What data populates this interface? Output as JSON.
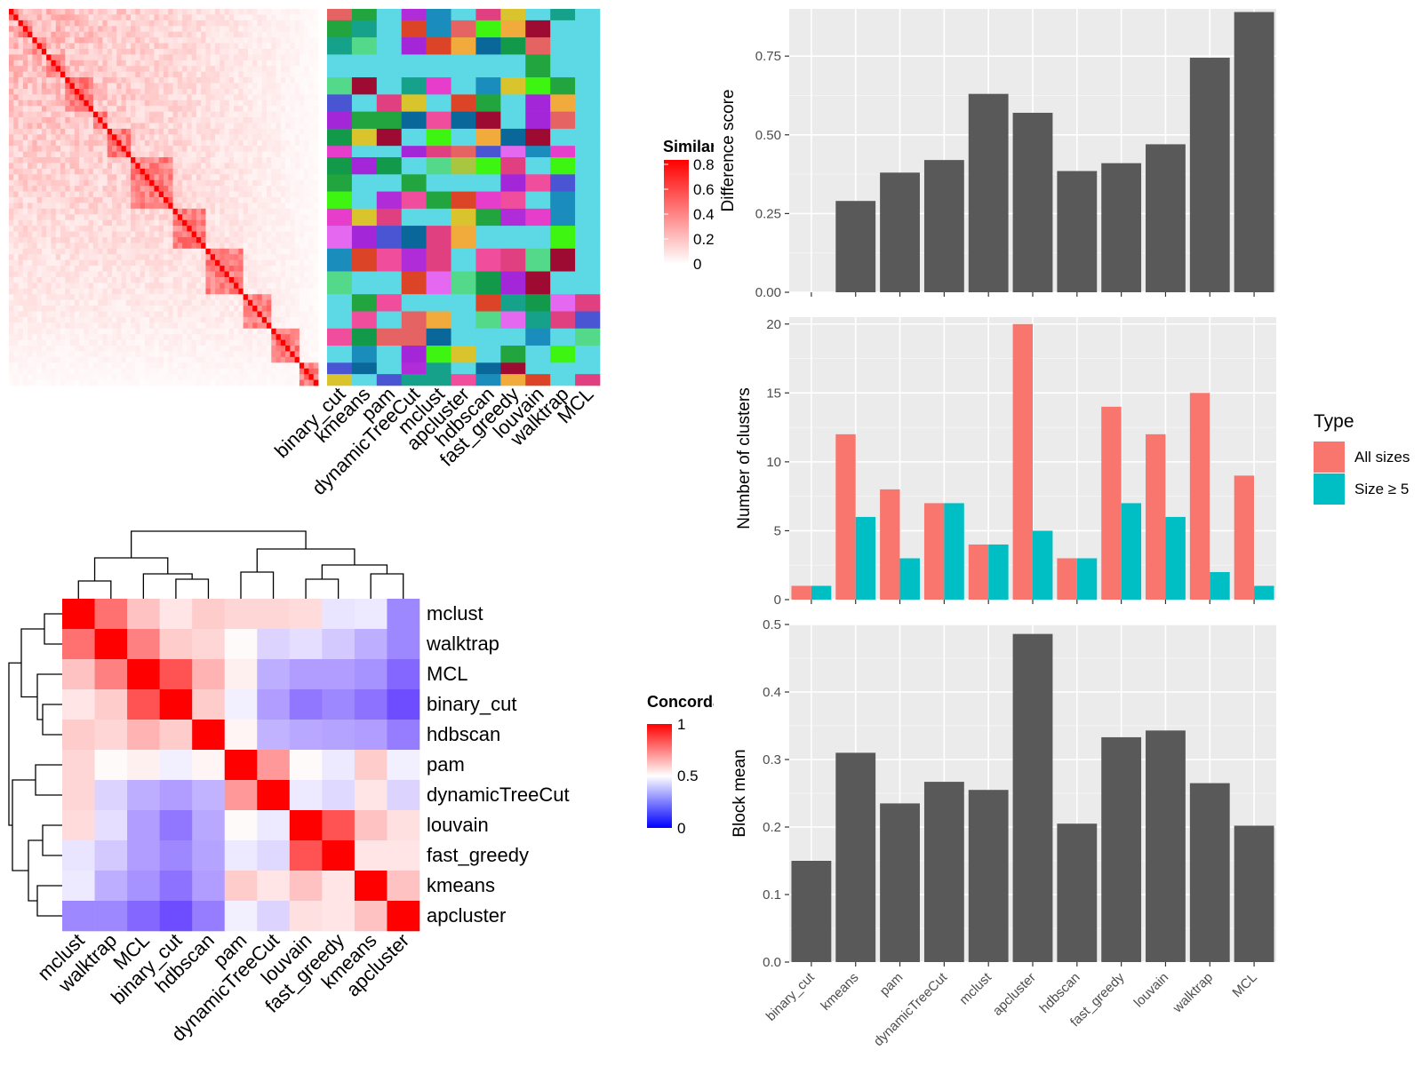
{
  "methods": [
    "binary_cut",
    "kmeans",
    "pam",
    "dynamicTreeCut",
    "mclust",
    "apcluster",
    "hdbscan",
    "fast_greedy",
    "louvain",
    "walktrap",
    "MCL"
  ],
  "chart_data": [
    {
      "type": "heatmap",
      "title": "",
      "legend_title": "Similarity",
      "legend_ticks": [
        "0",
        "0.2",
        "0.4",
        "0.6",
        "0.8"
      ],
      "color_low": "#ffffff",
      "color_high": "#ff0000",
      "n": 66,
      "annotation_columns": [
        "binary_cut",
        "kmeans",
        "pam",
        "dynamicTreeCut",
        "mclust",
        "apcluster",
        "hdbscan",
        "fast_greedy",
        "louvain",
        "walktrap",
        "MCL"
      ],
      "annotation_background": "#5dd9e5",
      "annotation_palette": [
        "#3ef512",
        "#db4426",
        "#22a43e",
        "#e0407f",
        "#0a6799",
        "#13994a",
        "#a9c641",
        "#d9c42d",
        "#e63dcb",
        "#9d0a32",
        "#b02cd8",
        "#e569f0",
        "#4a55d4",
        "#f0ab3c",
        "#1b8dbd",
        "#16a28a",
        "#54d98a",
        "#f04d9d",
        "#e56363",
        "#a327d8"
      ]
    },
    {
      "type": "heatmap",
      "title": "",
      "legend_title": "Concordance",
      "legend_ticks": [
        "0",
        "0.5",
        "1"
      ],
      "color_low": "#0000ff",
      "color_mid": "#ffffff",
      "color_high": "#ff0000",
      "rows": [
        "mclust",
        "walktrap",
        "MCL",
        "binary_cut",
        "hdbscan",
        "pam",
        "dynamicTreeCut",
        "louvain",
        "fast_greedy",
        "kmeans",
        "apcluster"
      ],
      "cols": [
        "mclust",
        "walktrap",
        "MCL",
        "binary_cut",
        "hdbscan",
        "pam",
        "dynamicTreeCut",
        "louvain",
        "fast_greedy",
        "kmeans",
        "apcluster"
      ],
      "values": [
        [
          1.0,
          0.78,
          0.62,
          0.55,
          0.6,
          0.58,
          0.58,
          0.57,
          0.45,
          0.46,
          0.28
        ],
        [
          0.78,
          1.0,
          0.75,
          0.6,
          0.58,
          0.51,
          0.42,
          0.44,
          0.4,
          0.35,
          0.28
        ],
        [
          0.62,
          0.75,
          1.0,
          0.84,
          0.65,
          0.53,
          0.35,
          0.32,
          0.32,
          0.3,
          0.22
        ],
        [
          0.55,
          0.6,
          0.84,
          1.0,
          0.6,
          0.47,
          0.32,
          0.25,
          0.28,
          0.24,
          0.17
        ],
        [
          0.6,
          0.58,
          0.65,
          0.6,
          1.0,
          0.52,
          0.36,
          0.34,
          0.33,
          0.32,
          0.26
        ],
        [
          0.58,
          0.51,
          0.53,
          0.47,
          0.52,
          1.0,
          0.7,
          0.51,
          0.46,
          0.6,
          0.47
        ],
        [
          0.58,
          0.42,
          0.35,
          0.32,
          0.36,
          0.7,
          1.0,
          0.46,
          0.43,
          0.55,
          0.42
        ],
        [
          0.57,
          0.44,
          0.32,
          0.25,
          0.34,
          0.51,
          0.46,
          1.0,
          0.84,
          0.62,
          0.56
        ],
        [
          0.45,
          0.4,
          0.32,
          0.28,
          0.33,
          0.46,
          0.43,
          0.84,
          1.0,
          0.55,
          0.55
        ],
        [
          0.46,
          0.35,
          0.3,
          0.24,
          0.32,
          0.6,
          0.55,
          0.62,
          0.55,
          1.0,
          0.62
        ],
        [
          0.28,
          0.28,
          0.22,
          0.17,
          0.26,
          0.47,
          0.42,
          0.56,
          0.55,
          0.62,
          1.0
        ]
      ]
    },
    {
      "type": "bar",
      "title": "",
      "categories": [
        "binary_cut",
        "kmeans",
        "pam",
        "dynamicTreeCut",
        "mclust",
        "apcluster",
        "hdbscan",
        "fast_greedy",
        "louvain",
        "walktrap",
        "MCL"
      ],
      "values": [
        0.0,
        0.29,
        0.38,
        0.42,
        0.63,
        0.57,
        0.385,
        0.41,
        0.47,
        0.745,
        0.89
      ],
      "xlabel": "",
      "ylabel": "Difference score",
      "ylim": [
        0,
        0.9
      ],
      "yticks": [
        "0.00",
        "0.25",
        "0.50",
        "0.75"
      ],
      "bar_color": "#595959",
      "grid": true
    },
    {
      "type": "bar",
      "title": "",
      "categories": [
        "binary_cut",
        "kmeans",
        "pam",
        "dynamicTreeCut",
        "mclust",
        "apcluster",
        "hdbscan",
        "fast_greedy",
        "louvain",
        "walktrap",
        "MCL"
      ],
      "series": [
        {
          "name": "All sizes",
          "values": [
            1,
            12,
            8,
            7,
            4,
            20,
            3,
            14,
            12,
            15,
            9
          ],
          "color": "#f8766d"
        },
        {
          "name": "Size ≥ 5",
          "values": [
            1,
            6,
            3,
            7,
            4,
            5,
            3,
            7,
            6,
            2,
            1
          ],
          "color": "#00bfc4"
        }
      ],
      "xlabel": "",
      "ylabel": "Number of clusters",
      "ylim": [
        0,
        20.5
      ],
      "yticks": [
        "0",
        "5",
        "10",
        "15",
        "20"
      ],
      "legend_title": "Type",
      "legend_position": "right",
      "grid": true
    },
    {
      "type": "bar",
      "title": "",
      "categories": [
        "binary_cut",
        "kmeans",
        "pam",
        "dynamicTreeCut",
        "mclust",
        "apcluster",
        "hdbscan",
        "fast_greedy",
        "louvain",
        "walktrap",
        "MCL"
      ],
      "values": [
        0.15,
        0.31,
        0.235,
        0.267,
        0.255,
        0.486,
        0.205,
        0.333,
        0.343,
        0.265,
        0.202
      ],
      "xlabel": "",
      "ylabel": "Block mean",
      "ylim": [
        0,
        0.5
      ],
      "yticks": [
        "0.0",
        "0.1",
        "0.2",
        "0.3",
        "0.4",
        "0.5"
      ],
      "bar_color": "#595959",
      "grid": true
    }
  ]
}
